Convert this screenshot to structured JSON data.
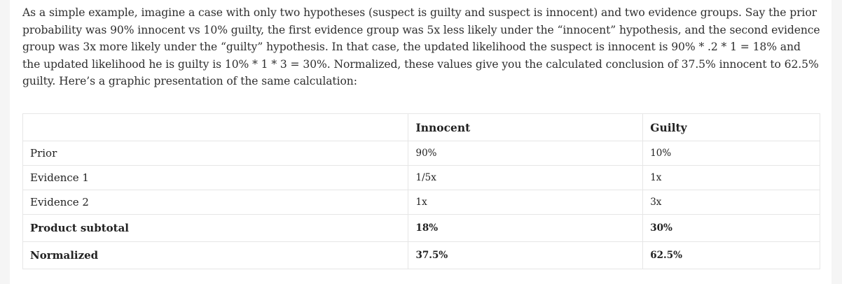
{
  "intro_text": "As a simple example, imagine a case with only two hypotheses (suspect is guilty and suspect is innocent) and two evidence groups. Say the prior probability was 90% innocent vs 10% guilty, the first evidence group was 5x less likely under the “innocent” hypothesis, and the second evidence group was 3x more likely under the “guilty” hypothesis. In that case, the updated likelihood the suspect is innocent is 90% * .2 * 1 = 18% and the updated likelihood he is guilty is 10% * 1 * 3 = 30%. Normalized, these values give you the calculated conclusion of 37.5% innocent to 62.5% guilty. Here’s a graphic presentation of the same calculation:",
  "table": {
    "headers": [
      "",
      "Innocent",
      "Guilty"
    ],
    "rows": [
      {
        "label": "Prior",
        "innocent": "90%",
        "guilty": "10%"
      },
      {
        "label": "Evidence 1",
        "innocent": "1/5x",
        "guilty": "1x"
      },
      {
        "label": "Evidence 2",
        "innocent": "1x",
        "guilty": "3x"
      },
      {
        "label": "Product subtotal",
        "innocent": "18%",
        "guilty": "30%"
      },
      {
        "label": "Normalized",
        "innocent": "37.5%",
        "guilty": "62.5%"
      }
    ]
  }
}
